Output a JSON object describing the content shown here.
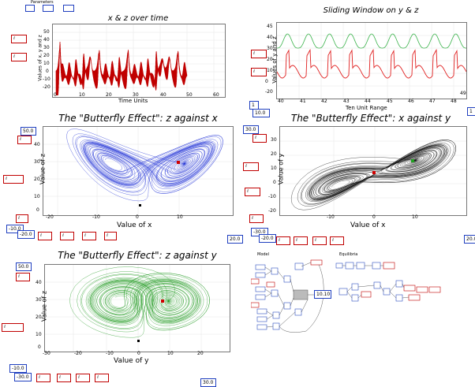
{
  "params_label": "Parameters",
  "panels": {
    "xz_time": {
      "title": "x & z over time",
      "xlabel": "Time Units",
      "ylabel": "Values of x, y and z",
      "xticks": [
        "0",
        "10",
        "20",
        "30",
        "40",
        "50",
        "60"
      ],
      "yticks": [
        "50",
        "40",
        "30",
        "20",
        "10",
        "0",
        "-10",
        "-20",
        "-30"
      ]
    },
    "sliding": {
      "title": "Sliding Window on y & z",
      "xlabel": "Ten Unit Range",
      "ylabel": "Values of y and z",
      "xticks": [
        "40",
        "41",
        "42",
        "43",
        "44",
        "45",
        "46",
        "47",
        "48",
        "49"
      ],
      "yticks": [
        "45",
        "40",
        "35",
        "30",
        "25",
        "20",
        "15",
        "10",
        "5",
        "0",
        "-5",
        "-10",
        "-15",
        "-20"
      ],
      "range_box": "10.0",
      "corner_box": "1"
    },
    "zx": {
      "title": "The \"Butterfly Effect\": z against x",
      "xlabel": "Value of x",
      "ylabel": "Value of z",
      "xticks": [
        "-20",
        "-10",
        "0",
        "10"
      ],
      "yticks": [
        "40",
        "30",
        "20",
        "10",
        "0"
      ],
      "box_top": "50.0",
      "box_bl": "-10.0",
      "box_bl2": "-20.0",
      "box_br": "20.0"
    },
    "xy": {
      "title": "The \"Butterfly Effect\": x against y",
      "xlabel": "Value of x",
      "ylabel": "Value of y",
      "xticks": [
        "-10",
        "0",
        "10"
      ],
      "yticks": [
        "30",
        "20",
        "10",
        "0",
        "-10",
        "-20"
      ],
      "box_top": "30.0",
      "box_bl": "-30.0",
      "box_bl2": "-20.0",
      "box_br": "20.0"
    },
    "zy": {
      "title": "The \"Butterfly Effect\": z against y",
      "xlabel": "Value of y",
      "ylabel": "Value of z",
      "xticks": [
        "-30",
        "-20",
        "-10",
        "0",
        "10",
        "20"
      ],
      "yticks": [
        "40",
        "30",
        "20",
        "10",
        "0"
      ],
      "box_top": "50.0",
      "box_bl": "-10.0",
      "box_bl2": "-30.0",
      "box_br": "30.0"
    }
  },
  "model_label": "Model",
  "equilibria_label": "Equilibria",
  "model_value": "10.10",
  "colors": {
    "xz_line": "#c00000",
    "zx_line": "#1e2fd6",
    "xy_line": "#111111",
    "zy_line": "#1f9a1f",
    "sliding_y": "#e02020",
    "sliding_z": "#39b24a",
    "box_red": "#c00000",
    "box_blue": "#1f3fbf"
  }
}
